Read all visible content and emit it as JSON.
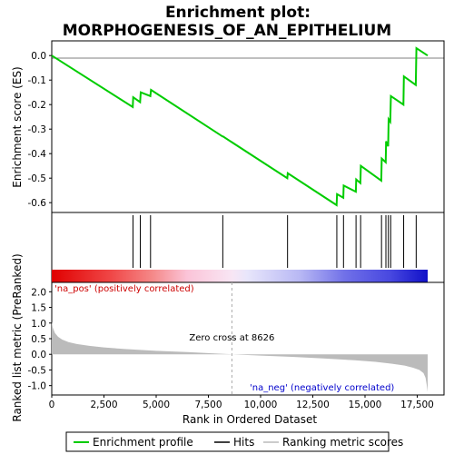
{
  "chart_data": {
    "type": "line",
    "title_line1": "Enrichment plot:",
    "title_line2": "MORPHOGENESIS_OF_AN_EPITHELIUM",
    "es_panel": {
      "ylabel": "Enrichment score (ES)",
      "ylim": [
        -0.64,
        0.06
      ],
      "yticks": [
        0.0,
        -0.1,
        -0.2,
        -0.3,
        -0.4,
        -0.5,
        -0.6
      ],
      "ytick_labels": [
        "0.0",
        "-0.1",
        "-0.2",
        "-0.3",
        "-0.4",
        "-0.5",
        "-0.6"
      ],
      "series": {
        "name": "Enrichment profile",
        "color": "#00cc00",
        "x": [
          0,
          3880,
          3900,
          4230,
          4260,
          4720,
          4750,
          8180,
          8200,
          11280,
          11300,
          13640,
          13660,
          13960,
          13980,
          14560,
          14580,
          14780,
          14800,
          15780,
          15800,
          15990,
          16010,
          16110,
          16130,
          16210,
          16240,
          16840,
          16860,
          17430,
          17460,
          18000
        ],
        "y": [
          0.0,
          -0.21,
          -0.17,
          -0.19,
          -0.15,
          -0.165,
          -0.14,
          -0.33,
          -0.33,
          -0.5,
          -0.48,
          -0.61,
          -0.565,
          -0.58,
          -0.53,
          -0.555,
          -0.505,
          -0.52,
          -0.45,
          -0.51,
          -0.42,
          -0.435,
          -0.35,
          -0.37,
          -0.26,
          -0.27,
          -0.165,
          -0.2,
          -0.085,
          -0.12,
          0.03,
          0.0
        ]
      }
    },
    "hits": {
      "name": "Hits",
      "positions": [
        3890,
        4240,
        4730,
        8190,
        11290,
        13650,
        13970,
        14570,
        14790,
        15790,
        16000,
        16120,
        16230,
        16850,
        17450
      ]
    },
    "rank_panel": {
      "ylabel": "Ranked list metric (PreRanked)",
      "xlabel": "Rank in Ordered Dataset",
      "ylim": [
        -1.3,
        2.3
      ],
      "yticks": [
        2.0,
        1.5,
        1.0,
        0.5,
        0.0,
        -0.5,
        -1.0
      ],
      "ytick_labels": [
        "2.0",
        "1.5",
        "1.0",
        "0.5",
        "0.0",
        "-0.5",
        "-1.0"
      ],
      "xlim": [
        0,
        18000
      ],
      "xticks": [
        0,
        2500,
        5000,
        7500,
        10000,
        12500,
        15000,
        17500
      ],
      "xtick_labels": [
        "0",
        "2,500",
        "5,000",
        "7,500",
        "10,000",
        "12,500",
        "15,000",
        "17,500"
      ],
      "zero_cross": 8626,
      "zero_cross_label": "Zero cross at 8626",
      "pos_label": "'na_pos' (positively correlated)",
      "neg_label": "'na_neg' (negatively correlated)",
      "series": {
        "name": "Ranking metric scores",
        "x": [
          0,
          50,
          150,
          300,
          500,
          800,
          1200,
          1800,
          2500,
          3500,
          5000,
          6500,
          8000,
          8626,
          10000,
          11500,
          13000,
          14500,
          15500,
          16300,
          16900,
          17300,
          17600,
          17800,
          17900,
          17960,
          18000
        ],
        "y": [
          1.05,
          0.85,
          0.68,
          0.56,
          0.47,
          0.39,
          0.33,
          0.27,
          0.22,
          0.17,
          0.11,
          0.07,
          0.02,
          0.0,
          -0.04,
          -0.08,
          -0.13,
          -0.19,
          -0.24,
          -0.3,
          -0.36,
          -0.43,
          -0.5,
          -0.6,
          -0.75,
          -1.0,
          -1.2
        ]
      }
    },
    "legend": {
      "items": [
        {
          "label": "Enrichment profile",
          "color": "#00cc00"
        },
        {
          "label": "Hits",
          "color": "#000000"
        },
        {
          "label": "Ranking metric scores",
          "color": "#bbbbbb"
        }
      ]
    },
    "colors": {
      "profile": "#00cc00",
      "pos_text": "#cc0000",
      "neg_text": "#0000cc",
      "metric_fill": "#bbbbbb"
    }
  }
}
